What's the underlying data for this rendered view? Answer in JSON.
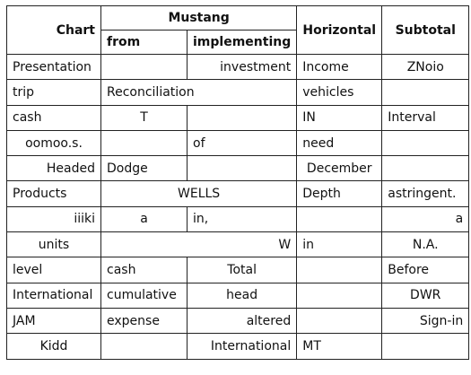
{
  "table": {
    "headers": {
      "chart": "Chart",
      "mustang": "Mustang",
      "from": "from",
      "implementing": "implementing",
      "horizontal": "Horizontal",
      "subtotal": "Subtotal"
    },
    "rows": [
      {
        "cells": [
          {
            "text": "Presentation",
            "align": "left"
          },
          {
            "text": "",
            "align": "left"
          },
          {
            "text": "investment",
            "align": "right"
          },
          {
            "text": "Income",
            "align": "left"
          },
          {
            "text": "ZNoio",
            "align": "center"
          }
        ]
      },
      {
        "cells": [
          {
            "text": "trip",
            "align": "left"
          },
          {
            "text": "Reconciliation",
            "align": "left",
            "colspan": 2
          },
          {
            "text": "vehicles",
            "align": "left"
          },
          {
            "text": "",
            "align": "left"
          }
        ]
      },
      {
        "cells": [
          {
            "text": "cash",
            "align": "left"
          },
          {
            "text": "T",
            "align": "center"
          },
          {
            "text": "",
            "align": "left"
          },
          {
            "text": "IN",
            "align": "left"
          },
          {
            "text": "Interval",
            "align": "left"
          }
        ]
      },
      {
        "cells": [
          {
            "text": "oomoo.s.",
            "align": "center"
          },
          {
            "text": "",
            "align": "left"
          },
          {
            "text": "of",
            "align": "left"
          },
          {
            "text": "need",
            "align": "left"
          },
          {
            "text": "",
            "align": "left"
          }
        ]
      },
      {
        "cells": [
          {
            "text": "Headed",
            "align": "right"
          },
          {
            "text": "Dodge",
            "align": "left"
          },
          {
            "text": "",
            "align": "left"
          },
          {
            "text": "December",
            "align": "center"
          },
          {
            "text": "",
            "align": "left"
          }
        ]
      },
      {
        "cells": [
          {
            "text": "Products",
            "align": "left"
          },
          {
            "text": "WELLS",
            "align": "center",
            "colspan": 2
          },
          {
            "text": "Depth",
            "align": "left"
          },
          {
            "text": "astringent.",
            "align": "left"
          }
        ]
      },
      {
        "cells": [
          {
            "text": "iiiki",
            "align": "right"
          },
          {
            "text": "a",
            "align": "center"
          },
          {
            "text": "in,",
            "align": "left"
          },
          {
            "text": "",
            "align": "left"
          },
          {
            "text": "a",
            "align": "right"
          }
        ]
      },
      {
        "cells": [
          {
            "text": "units",
            "align": "center"
          },
          {
            "text": "W",
            "align": "right",
            "colspan": 2
          },
          {
            "text": "in",
            "align": "left"
          },
          {
            "text": "N.A.",
            "align": "center"
          }
        ]
      },
      {
        "cells": [
          {
            "text": "level",
            "align": "left"
          },
          {
            "text": "cash",
            "align": "left"
          },
          {
            "text": "Total",
            "align": "center"
          },
          {
            "text": "",
            "align": "left"
          },
          {
            "text": "Before",
            "align": "left"
          }
        ]
      },
      {
        "cells": [
          {
            "text": "International",
            "align": "left"
          },
          {
            "text": "cumulative",
            "align": "left"
          },
          {
            "text": "head",
            "align": "center"
          },
          {
            "text": "",
            "align": "left"
          },
          {
            "text": "DWR",
            "align": "center"
          }
        ]
      },
      {
        "cells": [
          {
            "text": "JAM",
            "align": "left"
          },
          {
            "text": "expense",
            "align": "left"
          },
          {
            "text": "altered",
            "align": "right"
          },
          {
            "text": "",
            "align": "left"
          },
          {
            "text": "Sign-in",
            "align": "right"
          }
        ]
      },
      {
        "cells": [
          {
            "text": "Kidd",
            "align": "center"
          },
          {
            "text": "",
            "align": "left"
          },
          {
            "text": "International",
            "align": "right"
          },
          {
            "text": "MT",
            "align": "left"
          },
          {
            "text": "",
            "align": "left"
          }
        ]
      }
    ]
  }
}
